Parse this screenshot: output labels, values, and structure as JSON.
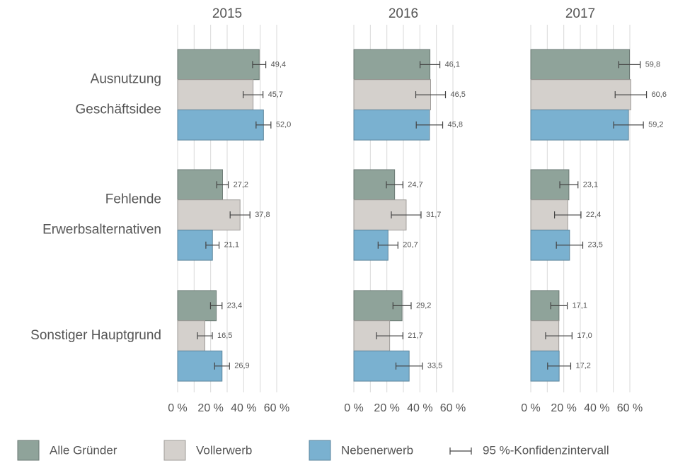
{
  "chart_data": {
    "type": "bar",
    "orientation": "horizontal",
    "categories": [
      [
        "Ausnutzung",
        "Geschäftsidee"
      ],
      [
        "Fehlende",
        "Erwerbsalternativen"
      ],
      [
        "Sonstiger Hauptgrund"
      ]
    ],
    "series": [
      {
        "name": "Alle Gründer",
        "color": "#8fa39a"
      },
      {
        "name": "Vollerwerb",
        "color": "#d4d0cc"
      },
      {
        "name": "Nebenerwerb",
        "color": "#7ab1d0"
      }
    ],
    "error_bar_label": "95 %-Konfidenzintervall",
    "xlim": [
      0,
      60
    ],
    "xticks": [
      {
        "value": 0,
        "label": "0 %"
      },
      {
        "value": 20,
        "label": "20 %"
      },
      {
        "value": 40,
        "label": "40 %"
      },
      {
        "value": 60,
        "label": "60 %"
      }
    ],
    "xgrid": [
      0,
      10,
      20,
      30,
      40,
      50,
      60
    ],
    "panels": [
      {
        "title": "2015",
        "series": [
          {
            "values": [
              49.4,
              27.2,
              23.4
            ],
            "value_labels": [
              "49,4",
              "27,2",
              "23,4"
            ],
            "errors": [
              4,
              3.5,
              3.5
            ]
          },
          {
            "values": [
              45.7,
              37.8,
              16.5
            ],
            "value_labels": [
              "45,7",
              "37,8",
              "16,5"
            ],
            "errors": [
              6,
              6,
              4.5
            ]
          },
          {
            "values": [
              52.0,
              21.1,
              26.9
            ],
            "value_labels": [
              "52,0",
              "21,1",
              "26,9"
            ],
            "errors": [
              4.5,
              4,
              4.5
            ]
          }
        ]
      },
      {
        "title": "2016",
        "series": [
          {
            "values": [
              46.1,
              24.7,
              29.2
            ],
            "value_labels": [
              "46,1",
              "24,7",
              "29,2"
            ],
            "errors": [
              6,
              5,
              5.5
            ]
          },
          {
            "values": [
              46.5,
              31.7,
              21.7
            ],
            "value_labels": [
              "46,5",
              "31,7",
              "21,7"
            ],
            "errors": [
              9,
              9,
              8
            ]
          },
          {
            "values": [
              45.8,
              20.7,
              33.5
            ],
            "value_labels": [
              "45,8",
              "20,7",
              "33,5"
            ],
            "errors": [
              8,
              6,
              8
            ]
          }
        ]
      },
      {
        "title": "2017",
        "series": [
          {
            "values": [
              59.8,
              23.1,
              17.1
            ],
            "value_labels": [
              "59,8",
              "23,1",
              "17,1"
            ],
            "errors": [
              6.5,
              5.5,
              5
            ]
          },
          {
            "values": [
              60.6,
              22.4,
              17.0
            ],
            "value_labels": [
              "60,6",
              "22,4",
              "17,0"
            ],
            "errors": [
              9.5,
              8,
              8
            ]
          },
          {
            "values": [
              59.2,
              23.5,
              17.2
            ],
            "value_labels": [
              "59,2",
              "23,5",
              "17,2"
            ],
            "errors": [
              9,
              8,
              7
            ]
          }
        ]
      }
    ]
  }
}
